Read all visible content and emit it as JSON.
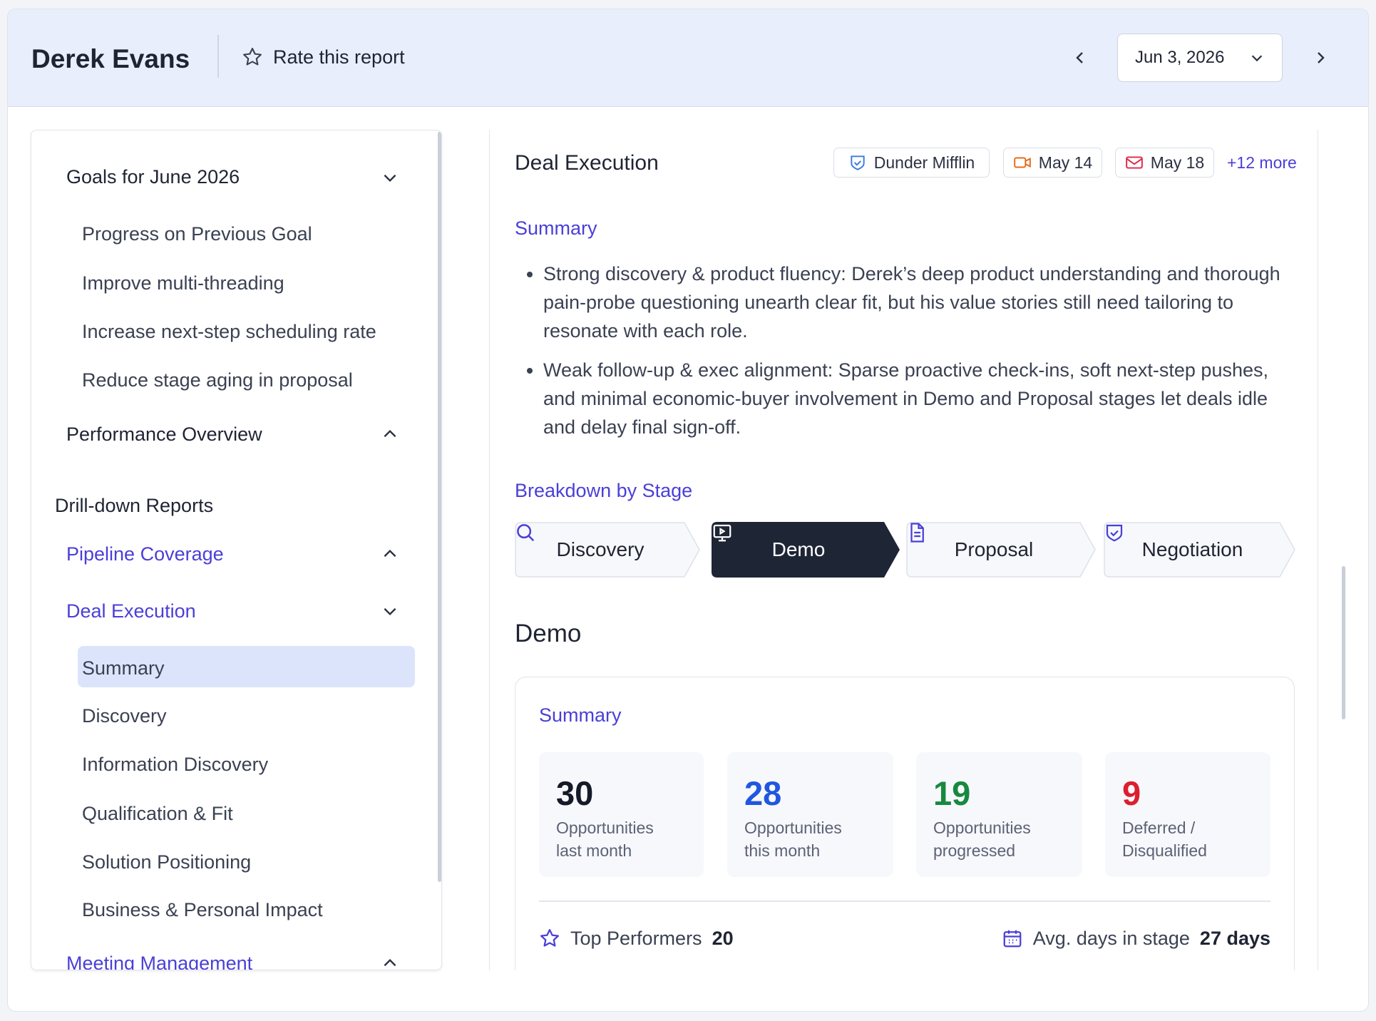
{
  "header": {
    "name": "Derek Evans",
    "rate_label": "Rate this report",
    "date": "Jun 3, 2026"
  },
  "sidebar": {
    "goals": {
      "title": "Goals for June 2026",
      "items": [
        "Progress on Previous Goal",
        "Improve multi-threading",
        "Increase next-step scheduling rate",
        "Reduce stage aging in proposal"
      ]
    },
    "performance_overview": "Performance Overview",
    "drilldown_title": "Drill-down Reports",
    "pipeline_coverage": "Pipeline Coverage",
    "deal_execution": {
      "title": "Deal Execution",
      "items": [
        "Summary",
        "Discovery",
        "Information Discovery",
        "Qualification & Fit",
        "Solution Positioning",
        "Business & Personal Impact"
      ]
    },
    "meeting_management": "Meeting Management"
  },
  "main": {
    "title": "Deal Execution",
    "chips": [
      "Dunder Mifflin",
      "May 14",
      "May 18"
    ],
    "more": "+12 more",
    "summary_heading": "Summary",
    "bullets": [
      "Strong discovery & product fluency: Derek’s deep product understanding and thorough pain-probe questioning unearth clear fit, but his value stories still need tailoring to resonate with each role.",
      "Weak follow-up & exec alignment: Sparse proactive check-ins, soft next-step pushes, and minimal economic-buyer involvement in Demo and Proposal stages let deals idle and delay final sign-off."
    ],
    "breakdown_heading": "Breakdown by Stage",
    "stages": [
      "Discovery",
      "Demo",
      "Proposal",
      "Negotiation"
    ],
    "stage_title": "Demo",
    "stage_summary_heading": "Summary",
    "stats": [
      {
        "value": 30,
        "label": "Opportunities last month"
      },
      {
        "value": 28,
        "label": "Opportunities this month"
      },
      {
        "value": 19,
        "label": "Opportunities progressed"
      },
      {
        "value": 9,
        "label": "Deferred / Disqualified"
      }
    ],
    "top_performers": {
      "label": "Top Performers",
      "value": 20
    },
    "avg_days": {
      "label": "Avg. days in stage",
      "value": "27 days"
    }
  }
}
